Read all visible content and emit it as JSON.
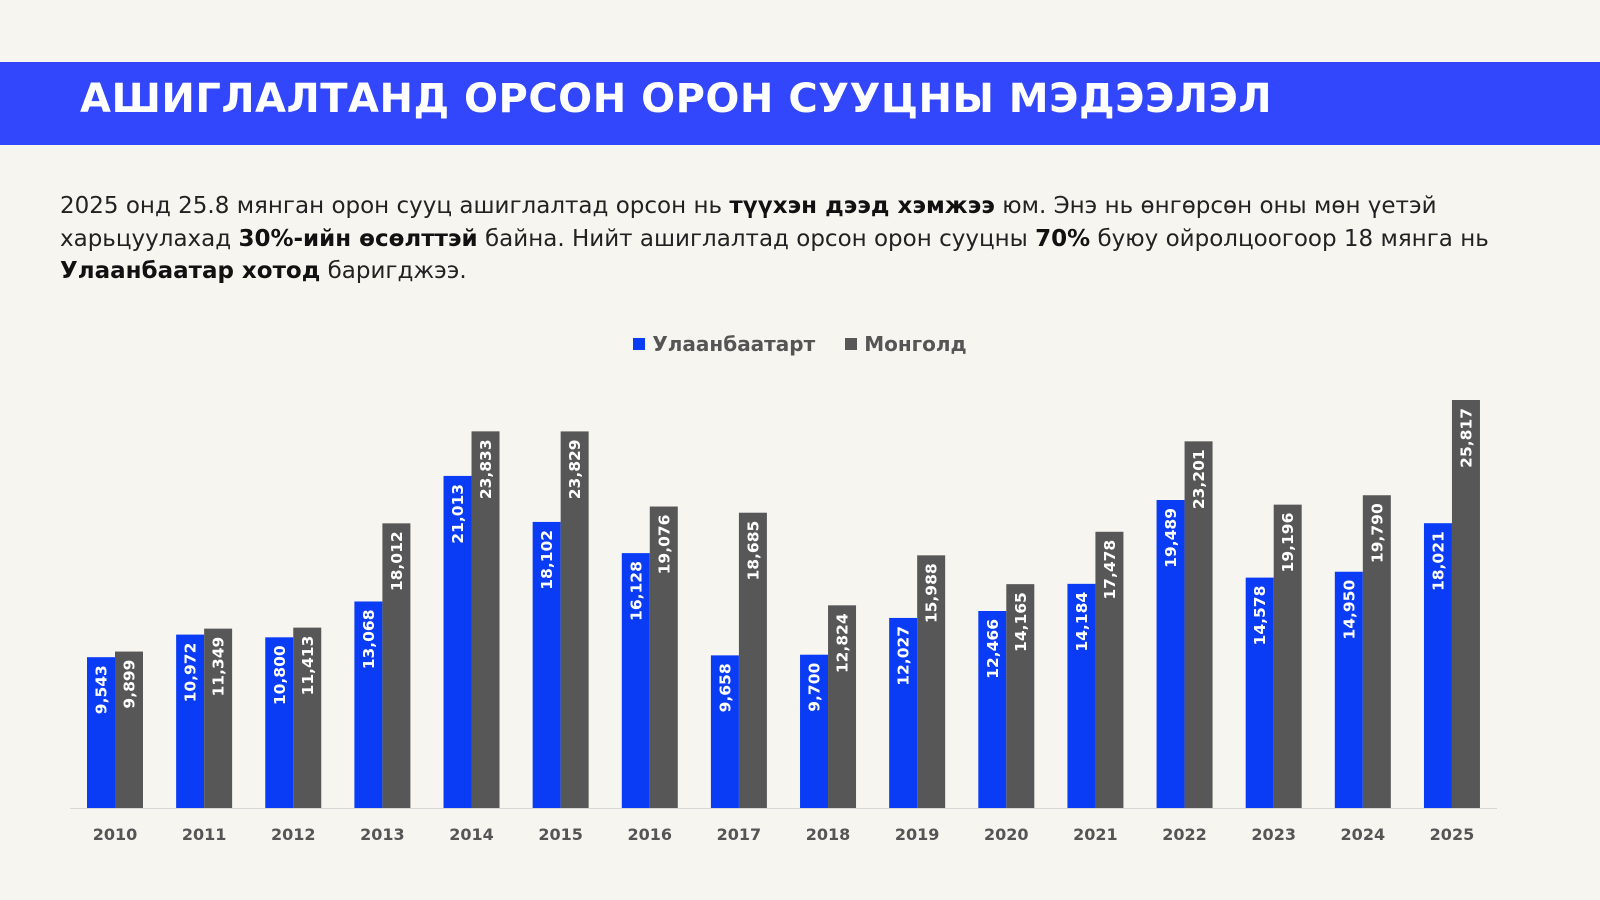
{
  "header": {
    "title": "АШИГЛАЛТАНД ОРСОН ОРОН СУУЦНЫ МЭДЭЭЛЭЛ"
  },
  "paragraph": [
    {
      "t": "2025 онд 25.8 мянган орон сууц ашиглалтад орсон нь ",
      "b": false
    },
    {
      "t": "түүхэн дээд хэмжээ",
      "b": true
    },
    {
      "t": " юм. Энэ нь өнгөрсөн оны мөн үетэй харьцуулахад ",
      "b": false
    },
    {
      "t": "30%-ийн өсөлттэй",
      "b": true
    },
    {
      "t": " байна. Нийт ашиглалтад орсон орон сууцны ",
      "b": false
    },
    {
      "t": "70%",
      "b": true
    },
    {
      "t": " буюу ойролцоогоор 18 мянга нь ",
      "b": false
    },
    {
      "t": "Улаанбаатар хотод",
      "b": true
    },
    {
      "t": " баригджээ.",
      "b": false
    }
  ],
  "chart_data": {
    "type": "bar",
    "categories": [
      "2010",
      "2011",
      "2012",
      "2013",
      "2014",
      "2015",
      "2016",
      "2017",
      "2018",
      "2019",
      "2020",
      "2021",
      "2022",
      "2023",
      "2024",
      "2025"
    ],
    "series": [
      {
        "name": "Улаанбаатарт",
        "color": "#0a3cf5",
        "values": [
          9543,
          10972,
          10800,
          13068,
          21013,
          18102,
          16128,
          9658,
          9700,
          12027,
          12466,
          14184,
          19489,
          14578,
          14950,
          18021
        ],
        "labels": [
          "9,543",
          "10,972",
          "10,800",
          "13,068",
          "21,013",
          "18,102",
          "16,128",
          "9,658",
          "9,700",
          "12,027",
          "12,466",
          "14,184",
          "19,489",
          "14,578",
          "14,950",
          "18,021"
        ]
      },
      {
        "name": "Монголд",
        "color": "#575757",
        "values": [
          9899,
          11349,
          11413,
          18012,
          23833,
          23829,
          19076,
          18685,
          12824,
          15988,
          14165,
          17478,
          23201,
          19196,
          19790,
          25817
        ],
        "labels": [
          "9,899",
          "11,349",
          "11,413",
          "18,012",
          "23,833",
          "23,829",
          "19,076",
          "18,685",
          "12,824",
          "15,988",
          "14,165",
          "17,478",
          "23,201",
          "19,196",
          "19,790",
          "25,817"
        ]
      }
    ],
    "legend_position": "top-center",
    "grid": false,
    "ylim": [
      0,
      25817
    ]
  }
}
